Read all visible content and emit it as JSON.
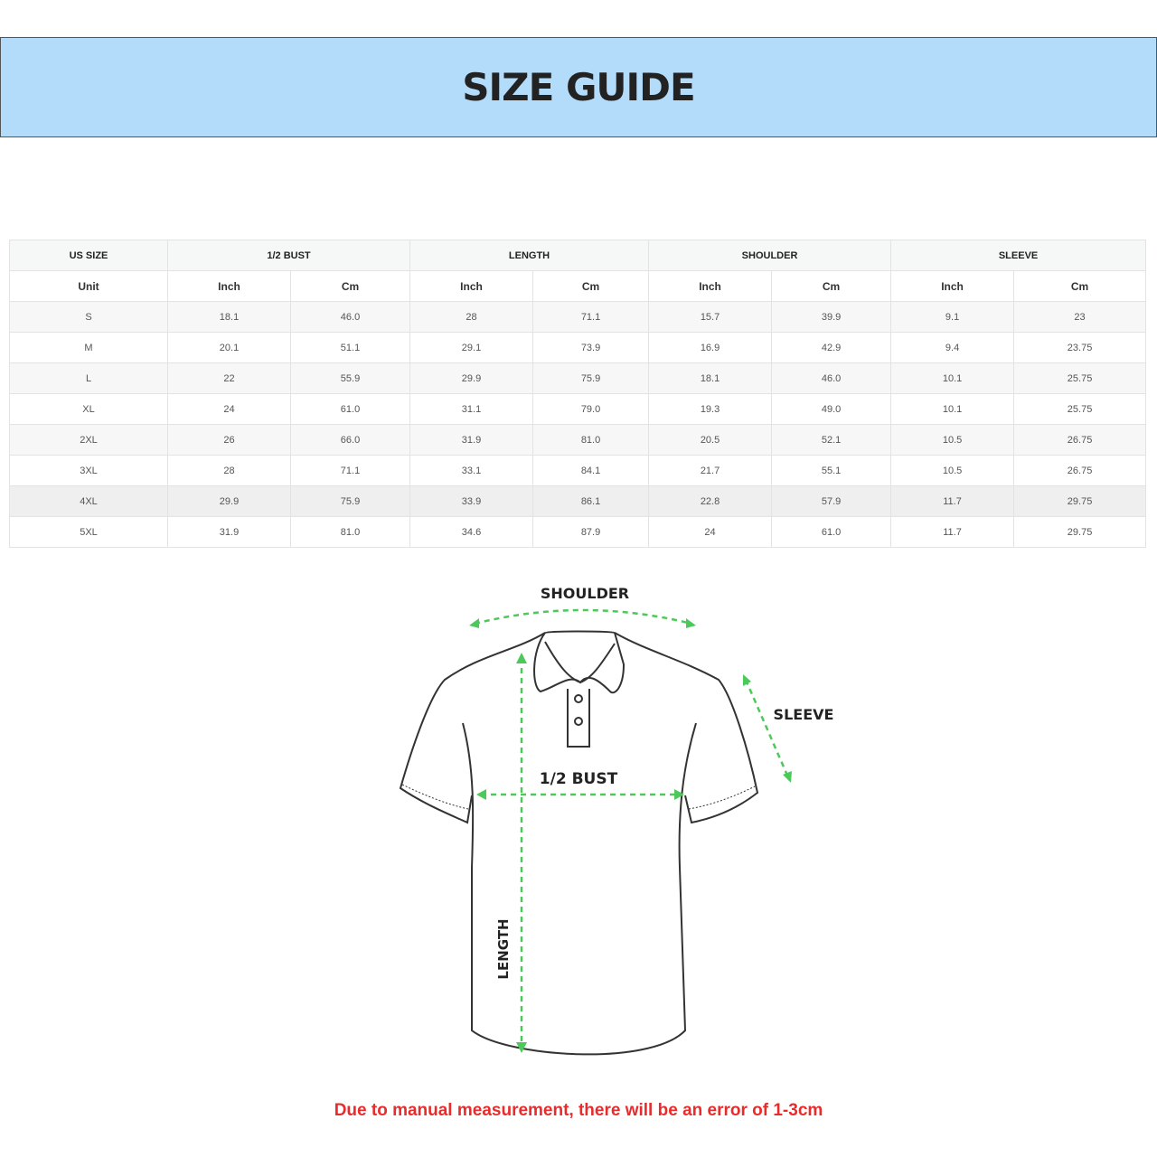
{
  "title": "SIZE GUIDE",
  "table": {
    "groups": [
      "US SIZE",
      "1/2 BUST",
      "LENGTH",
      "SHOULDER",
      "SLEEVE"
    ],
    "units": [
      "Unit",
      "Inch",
      "Cm",
      "Inch",
      "Cm",
      "Inch",
      "Cm",
      "Inch",
      "Cm"
    ],
    "rows": [
      [
        "S",
        "18.1",
        "46.0",
        "28",
        "71.1",
        "15.7",
        "39.9",
        "9.1",
        "23"
      ],
      [
        "M",
        "20.1",
        "51.1",
        "29.1",
        "73.9",
        "16.9",
        "42.9",
        "9.4",
        "23.75"
      ],
      [
        "L",
        "22",
        "55.9",
        "29.9",
        "75.9",
        "18.1",
        "46.0",
        "10.1",
        "25.75"
      ],
      [
        "XL",
        "24",
        "61.0",
        "31.1",
        "79.0",
        "19.3",
        "49.0",
        "10.1",
        "25.75"
      ],
      [
        "2XL",
        "26",
        "66.0",
        "31.9",
        "81.0",
        "20.5",
        "52.1",
        "10.5",
        "26.75"
      ],
      [
        "3XL",
        "28",
        "71.1",
        "33.1",
        "84.1",
        "21.7",
        "55.1",
        "10.5",
        "26.75"
      ],
      [
        "4XL",
        "29.9",
        "75.9",
        "33.9",
        "86.1",
        "22.8",
        "57.9",
        "11.7",
        "29.75"
      ],
      [
        "5XL",
        "31.9",
        "81.0",
        "34.6",
        "87.9",
        "24",
        "61.0",
        "11.7",
        "29.75"
      ]
    ]
  },
  "diagram": {
    "shoulder_label": "SHOULDER",
    "sleeve_label": "SLEEVE",
    "bust_label": "1/2 BUST",
    "length_label": "LENGTH",
    "arrow_color": "#4cc95a"
  },
  "note": "Due to manual measurement, there will be an error of 1-3cm",
  "colors": {
    "banner": "#b3dcfb",
    "note": "#e82b2b"
  }
}
